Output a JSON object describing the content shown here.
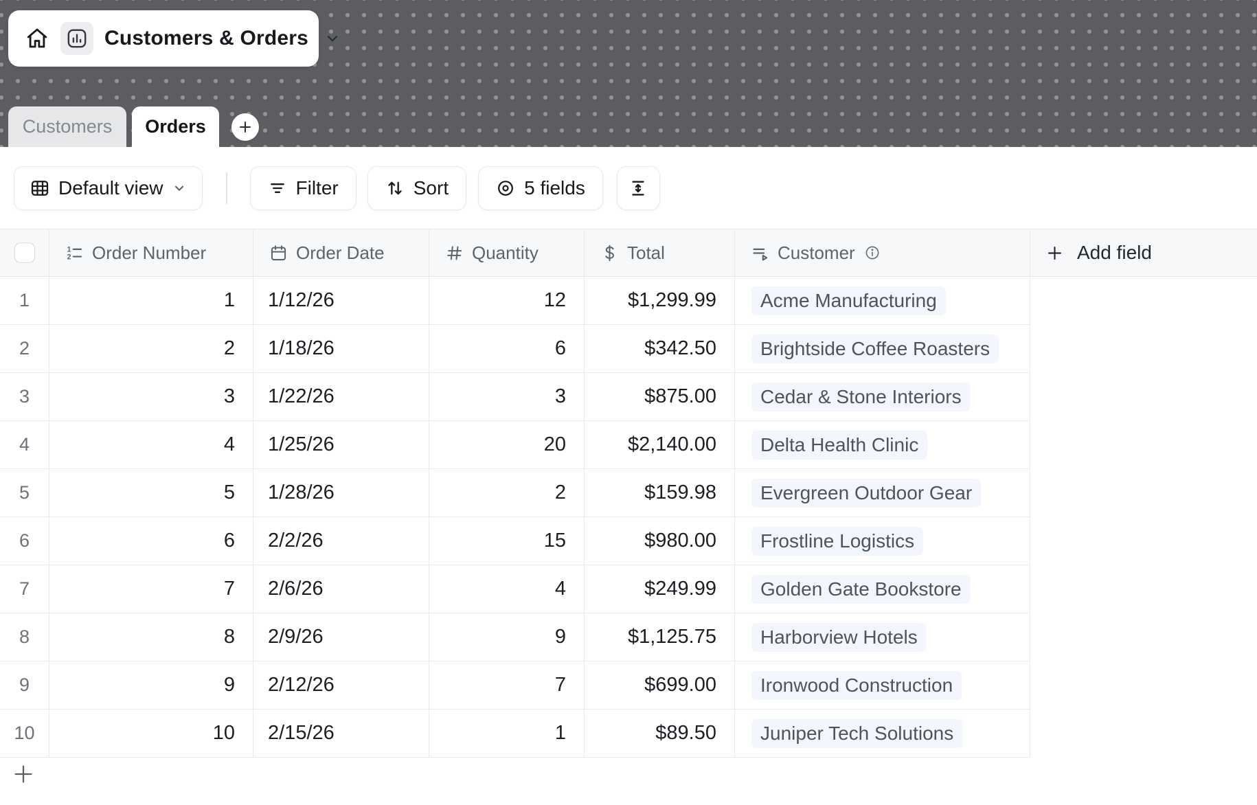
{
  "app": {
    "title": "Customers & Orders"
  },
  "tabs": [
    {
      "label": "Customers",
      "active": false
    },
    {
      "label": "Orders",
      "active": true
    }
  ],
  "toolbar": {
    "view_label": "Default view",
    "filter_label": "Filter",
    "sort_label": "Sort",
    "fields_label": "5 fields"
  },
  "table": {
    "columns": [
      {
        "label": "Order Number",
        "icon": "ordered-list-icon",
        "type": "autonumber"
      },
      {
        "label": "Order Date",
        "icon": "calendar-icon",
        "type": "date"
      },
      {
        "label": "Quantity",
        "icon": "hash-icon",
        "type": "number"
      },
      {
        "label": "Total",
        "icon": "dollar-icon",
        "type": "currency"
      },
      {
        "label": "Customer",
        "icon": "lookup-icon",
        "type": "linked-record",
        "has_info_icon": true
      }
    ],
    "add_field_label": "Add field",
    "rows": [
      {
        "n": "1",
        "order_number": "1",
        "order_date": "1/12/26",
        "quantity": "12",
        "total": "$1,299.99",
        "customer": "Acme Manufacturing"
      },
      {
        "n": "2",
        "order_number": "2",
        "order_date": "1/18/26",
        "quantity": "6",
        "total": "$342.50",
        "customer": "Brightside Coffee Roasters"
      },
      {
        "n": "3",
        "order_number": "3",
        "order_date": "1/22/26",
        "quantity": "3",
        "total": "$875.00",
        "customer": "Cedar & Stone Interiors"
      },
      {
        "n": "4",
        "order_number": "4",
        "order_date": "1/25/26",
        "quantity": "20",
        "total": "$2,140.00",
        "customer": "Delta Health Clinic"
      },
      {
        "n": "5",
        "order_number": "5",
        "order_date": "1/28/26",
        "quantity": "2",
        "total": "$159.98",
        "customer": "Evergreen Outdoor Gear"
      },
      {
        "n": "6",
        "order_number": "6",
        "order_date": "2/2/26",
        "quantity": "15",
        "total": "$980.00",
        "customer": "Frostline Logistics"
      },
      {
        "n": "7",
        "order_number": "7",
        "order_date": "2/6/26",
        "quantity": "4",
        "total": "$249.99",
        "customer": "Golden Gate Bookstore"
      },
      {
        "n": "8",
        "order_number": "8",
        "order_date": "2/9/26",
        "quantity": "9",
        "total": "$1,125.75",
        "customer": "Harborview Hotels"
      },
      {
        "n": "9",
        "order_number": "9",
        "order_date": "2/12/26",
        "quantity": "7",
        "total": "$699.00",
        "customer": "Ironwood Construction"
      },
      {
        "n": "10",
        "order_number": "10",
        "order_date": "2/15/26",
        "quantity": "1",
        "total": "$89.50",
        "customer": "Juniper Tech Solutions"
      }
    ]
  },
  "icons": {
    "home-icon": "house outline",
    "bar-chart-icon": "rounded square with vertical bars",
    "chevron-down-icon": "v chevron",
    "plus-icon": "+",
    "table-grid-icon": "3x3 table grid",
    "filter-lines-icon": "three shrinking lines",
    "sort-arrows-icon": "up and down arrows",
    "fields-visibility-icon": "concentric circles (eye)",
    "row-height-icon": "I-beam with vertical double arrow",
    "ordered-list-icon": "numbered list 1,2",
    "calendar-icon": "calendar",
    "hash-icon": "#",
    "dollar-icon": "$",
    "lookup-icon": "lines with right triangle",
    "info-icon": "circled i"
  },
  "colors": {
    "topbar_bg": "#5c5e62",
    "header_bg": "#f7f8f9",
    "grid_border": "#e9eaec",
    "customer_pill_bg": "#f3f6fc",
    "customer_text": "#4c5461",
    "data_text": "#1b1e23",
    "muted_text": "#5d636b"
  }
}
